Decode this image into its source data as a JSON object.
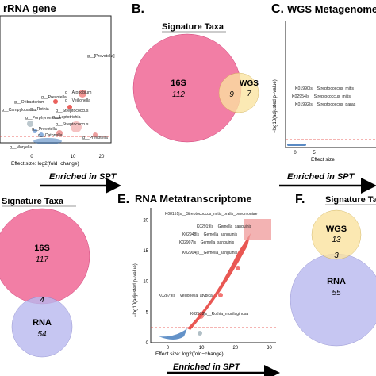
{
  "panels": {
    "A": {
      "letter": "",
      "title": "rRNA gene",
      "xlabel": "Effect size: log2(fold−change)",
      "ticks": [
        "0",
        "10",
        "20"
      ],
      "enriched": "Enriched in SPT",
      "labels": [
        "g__[Prevotella]",
        "g__Prevotella",
        "g__Atopobium",
        "g__Oribacterium",
        "g__Veillonella",
        "g__Campylobacter",
        "g__Rothia",
        "g__Streptococcus",
        "g__Leptotrichia",
        "g__Porphyromonas",
        "g__Streptococcus",
        "g__Prevotella",
        "g__Catonella",
        "g__Prevotella",
        "g__Moryella"
      ]
    },
    "B": {
      "letter": "B.",
      "title": "Signature Taxa",
      "left_name": "16S",
      "left_count": "112",
      "overlap": "9",
      "right_name": "WGS",
      "right_count": "7"
    },
    "C": {
      "letter": "C.",
      "title": "WGS Metagenome",
      "ylabel": "−log10(adjusted p−value)",
      "xlabel": "Effect size",
      "ticks": [
        "0",
        "5"
      ],
      "enriched": "Enriched in SPT",
      "labels": [
        "K01990|s__Streptococcus_mitis",
        "K02954|s__Streptococcus_mitis",
        "K01992|s__Streptococcus_paras"
      ]
    },
    "D": {
      "title": "Signature Taxa",
      "top_name": "16S",
      "top_count": "117",
      "overlap": "4",
      "bottom_name": "RNA",
      "bottom_count": "54"
    },
    "E": {
      "letter": "E.",
      "title": "RNA Metatranscriptome",
      "ylabel": "−log10(adjusted p−value)",
      "xlabel": "Effect size: log2(fold−change)",
      "enriched": "Enriched in SPT",
      "labels": [
        "K08151|s__Streptococcus_mitis_oralis_pneumoniae",
        "K02919|s__Gemella_sanguinis",
        "K02948|s__Gemella_sanguinis",
        "K02907|s__Gemella_sanguinis",
        "K02904|s__Gemella_sanguinis",
        "K02879|s__Veillonella_atypica",
        "K02518|s__Rothia_mucilaginosa"
      ]
    },
    "F": {
      "letter": "F.",
      "title": "Signature Ta",
      "top_name": "WGS",
      "top_count": "13",
      "overlap": "3",
      "bottom_name": "RNA",
      "bottom_count": "55"
    }
  },
  "chart_data": [
    {
      "type": "scatter",
      "panel": "A",
      "title": "rRNA gene",
      "xlabel": "Effect size: log2(fold−change)",
      "x_ticks": [
        0,
        10,
        20
      ]
    },
    {
      "type": "venn",
      "panel": "B",
      "title": "Signature Taxa",
      "sets": [
        {
          "name": "16S",
          "only": 112
        },
        {
          "name": "WGS",
          "only": 7
        }
      ],
      "overlap": 9
    },
    {
      "type": "scatter",
      "panel": "C",
      "title": "WGS Metagenome",
      "ylabel": "−log10(adjusted p−value)",
      "x_ticks": [
        0,
        5
      ]
    },
    {
      "type": "venn",
      "panel": "D",
      "title": "Signature Taxa",
      "sets": [
        {
          "name": "16S",
          "only": 117
        },
        {
          "name": "RNA",
          "only": 54
        }
      ],
      "overlap": 4
    },
    {
      "type": "scatter",
      "panel": "E",
      "title": "RNA Metatranscriptome",
      "xlabel": "Effect size: log2(fold−change)",
      "ylabel": "−log10(adjusted p−value)",
      "x_ticks": [
        0,
        10,
        20,
        30
      ],
      "y_ticks": [
        0,
        5,
        10,
        15,
        20
      ]
    },
    {
      "type": "venn",
      "panel": "F",
      "title": "Signature Ta",
      "sets": [
        {
          "name": "WGS",
          "only": 13
        },
        {
          "name": "RNA",
          "only": 55
        }
      ],
      "overlap": 3
    }
  ],
  "colors": {
    "pink": "#f06292",
    "yellow": "#fbe3a0",
    "blue": "#b9b8ef",
    "red": "#e53935",
    "blue_dots": "#2f6db5",
    "dash": "#e53935"
  }
}
